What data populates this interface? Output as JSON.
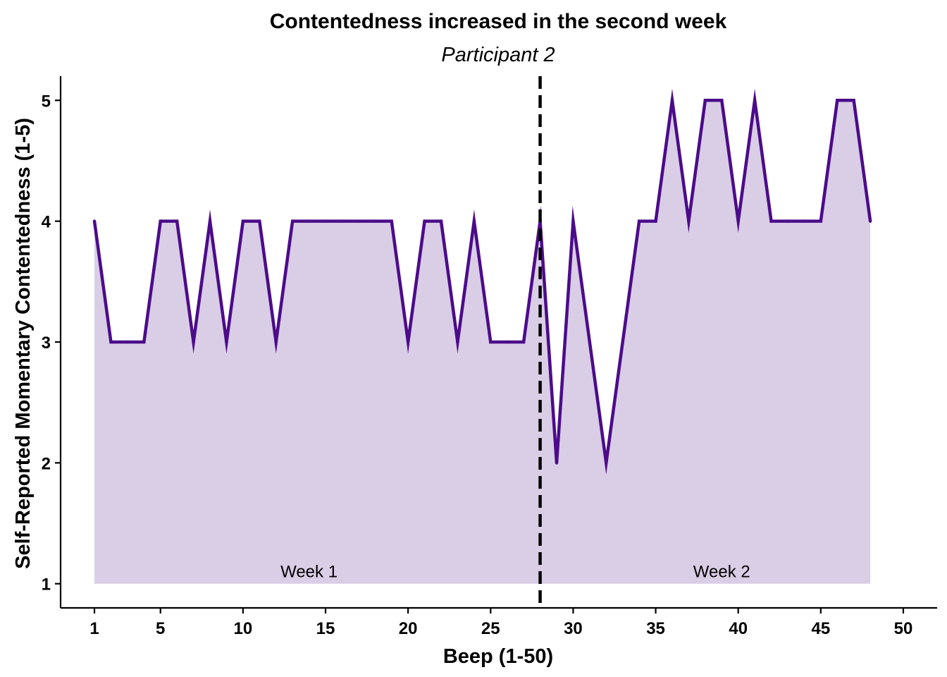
{
  "chart_data": {
    "type": "area",
    "title": "Contentedness increased in the second week",
    "subtitle": "Participant 2",
    "xlabel": "Beep (1-50)",
    "ylabel": "Self-Reported Momentary Contentedness (1-5)",
    "xlim": [
      -1.05,
      52.05
    ],
    "ylim": [
      0.8,
      5.2
    ],
    "x_ticks": [
      1,
      5,
      10,
      15,
      20,
      25,
      30,
      35,
      40,
      45,
      50
    ],
    "y_ticks": [
      1,
      2,
      3,
      4,
      5
    ],
    "fill_baseline": 1,
    "line_color": "#4B0C8A",
    "fill_color": "#DACDE6",
    "grid": false,
    "legend": "none",
    "x": [
      1,
      2,
      3,
      4,
      5,
      6,
      7,
      8,
      9,
      10,
      11,
      12,
      13,
      14,
      15,
      16,
      17,
      18,
      19,
      20,
      21,
      22,
      23,
      24,
      25,
      26,
      27,
      28,
      29,
      30,
      31,
      32,
      33,
      34,
      35,
      36,
      37,
      38,
      39,
      40,
      41,
      42,
      43,
      44,
      45,
      46,
      47,
      48
    ],
    "values": [
      4,
      3,
      3,
      3,
      4,
      4,
      3,
      4,
      3,
      4,
      4,
      3,
      4,
      4,
      4,
      4,
      4,
      4,
      4,
      3,
      4,
      4,
      3,
      4,
      3,
      3,
      3,
      4,
      2,
      4,
      3,
      2,
      3,
      4,
      4,
      5,
      4,
      5,
      5,
      4,
      5,
      4,
      4,
      4,
      4,
      5,
      5,
      4
    ],
    "vline": {
      "x": 28,
      "style": "dashed",
      "color": "#000000"
    },
    "annotations": [
      {
        "text": "Week 1",
        "x": 14,
        "y": 1.1
      },
      {
        "text": "Week 2",
        "x": 39,
        "y": 1.1
      }
    ]
  }
}
